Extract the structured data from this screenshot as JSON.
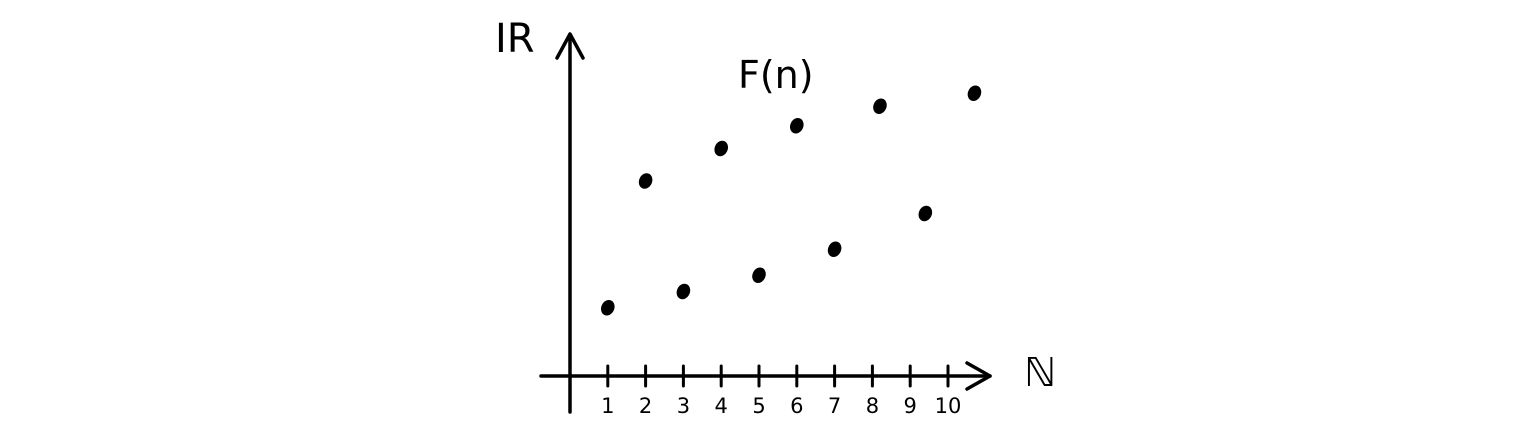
{
  "chart_data": {
    "type": "scatter",
    "title": "F(n)",
    "xlabel": "ℕ",
    "ylabel": "IR",
    "x_ticks": [
      "1",
      "2",
      "3",
      "4",
      "5",
      "6",
      "7",
      "8",
      "9",
      "10"
    ],
    "xlim": [
      0,
      11
    ],
    "ylim": [
      0,
      10
    ],
    "grid": false,
    "legend": "none",
    "color": "#000000",
    "series": [
      {
        "points": [
          {
            "x": 1,
            "y": 2.1
          },
          {
            "x": 2,
            "y": 6.0
          },
          {
            "x": 3,
            "y": 2.6
          },
          {
            "x": 4,
            "y": 7.0
          },
          {
            "x": 5,
            "y": 3.1
          },
          {
            "x": 6,
            "y": 7.7
          },
          {
            "x": 7,
            "y": 3.9
          },
          {
            "x": 8.2,
            "y": 8.3
          },
          {
            "x": 9.4,
            "y": 5.0
          },
          {
            "x": 10.7,
            "y": 8.7
          }
        ]
      }
    ]
  }
}
